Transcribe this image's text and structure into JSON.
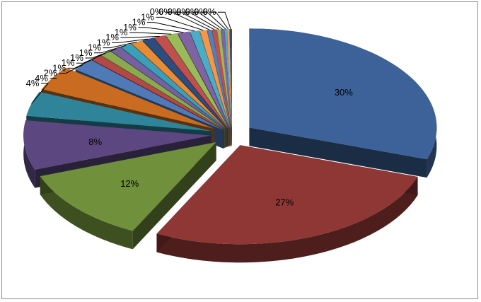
{
  "chart_data": {
    "type": "pie",
    "three_d": true,
    "exploded": true,
    "title": "",
    "legend": "none",
    "slices": [
      {
        "value": 30,
        "label": "30%",
        "color": "#3d6299"
      },
      {
        "value": 27,
        "label": "27%",
        "color": "#8e3735"
      },
      {
        "value": 12,
        "label": "12%",
        "color": "#70903b"
      },
      {
        "value": 8,
        "label": "8%",
        "color": "#5c4780"
      },
      {
        "value": 4,
        "label": "4%",
        "color": "#2f8499"
      },
      {
        "value": 4,
        "label": "4%",
        "color": "#c96c22"
      },
      {
        "value": 2,
        "label": "2%",
        "color": "#4f7ab8"
      },
      {
        "value": 1,
        "label": "1%",
        "color": "#b24946"
      },
      {
        "value": 1,
        "label": "1%",
        "color": "#8ba94e"
      },
      {
        "value": 1,
        "label": "1%",
        "color": "#7560a0"
      },
      {
        "value": 1,
        "label": "1%",
        "color": "#3a9fb8"
      },
      {
        "value": 1,
        "label": "1%",
        "color": "#e88b35"
      },
      {
        "value": 1,
        "label": "1%",
        "color": "#2c4d7f"
      },
      {
        "value": 1,
        "label": "1%",
        "color": "#c0504d"
      },
      {
        "value": 1,
        "label": "1%",
        "color": "#9bbb59"
      },
      {
        "value": 1,
        "label": "1%",
        "color": "#8064a2"
      },
      {
        "value": 0.8,
        "label": "1%",
        "color": "#4bacc6"
      },
      {
        "value": 0.6,
        "label": "1%",
        "color": "#f79646"
      },
      {
        "value": 0.4,
        "label": "0%",
        "color": "#4f81bd"
      },
      {
        "value": 0.4,
        "label": "0%",
        "color": "#c0504d"
      },
      {
        "value": 0.3,
        "label": "0%",
        "color": "#9bbb59"
      },
      {
        "value": 0.3,
        "label": "0%",
        "color": "#8064a2"
      },
      {
        "value": 0.2,
        "label": "0%",
        "color": "#4bacc6"
      },
      {
        "value": 0.2,
        "label": "0%",
        "color": "#f79646"
      },
      {
        "value": 0.2,
        "label": "0%",
        "color": "#2c4d75"
      }
    ]
  }
}
